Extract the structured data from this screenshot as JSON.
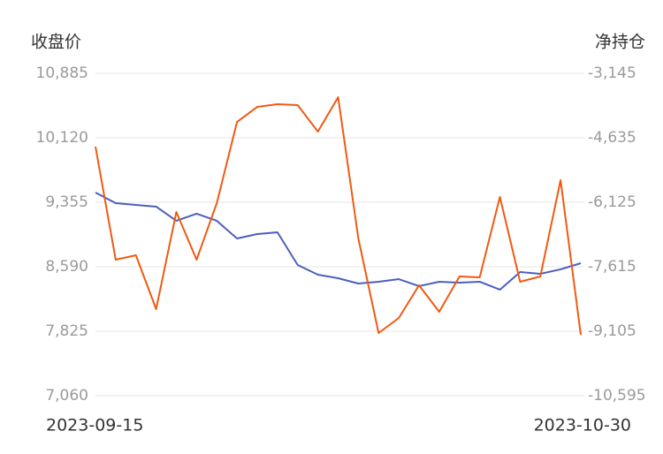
{
  "chart_data": {
    "type": "line",
    "ylabel": "收盘价",
    "y2label": "净持仓",
    "x": [
      "2023-09-15",
      null,
      null,
      null,
      null,
      null,
      null,
      null,
      null,
      null,
      null,
      null,
      null,
      null,
      null,
      null,
      null,
      null,
      null,
      null,
      null,
      null,
      null,
      null,
      "2023-10-30"
    ],
    "ylim": [
      7060,
      10885
    ],
    "yticks": [
      {
        "value": 7060,
        "label": "7,060"
      },
      {
        "value": 7825,
        "label": "7,825"
      },
      {
        "value": 8590,
        "label": "8,590"
      },
      {
        "value": 9355,
        "label": "9,355"
      },
      {
        "value": 10120,
        "label": "10,120"
      },
      {
        "value": 10885,
        "label": "10,885"
      }
    ],
    "y2lim": [
      -10595,
      -3145
    ],
    "y2ticks": [
      {
        "value": -10595,
        "label": "-10,595"
      },
      {
        "value": -9105,
        "label": "-9,105"
      },
      {
        "value": -7615,
        "label": "-7,615"
      },
      {
        "value": -6125,
        "label": "-6,125"
      },
      {
        "value": -4635,
        "label": "-4,635"
      },
      {
        "value": -3145,
        "label": "-3,145"
      }
    ],
    "grid": true,
    "series": [
      {
        "color": "#4a5fc1",
        "values": [
          9470,
          9345,
          9324,
          9303,
          9135,
          9219,
          9135,
          8925,
          8978,
          8999,
          8611,
          8496,
          8454,
          8391,
          8412,
          8443,
          8360,
          8412,
          8401,
          8412,
          8318,
          8527,
          8506,
          8559,
          8632
        ]
      },
      {
        "color": "#f05a12",
        "axis": "y2",
        "values": [
          -4839,
          -7452,
          -7349,
          -8594,
          -6349,
          -7452,
          -6145,
          -4268,
          -3921,
          -3859,
          -3880,
          -4492,
          -3696,
          -6962,
          -9146,
          -8799,
          -8043,
          -8656,
          -7839,
          -7860,
          -6002,
          -7962,
          -7839,
          -5615,
          -9186
        ]
      }
    ]
  }
}
